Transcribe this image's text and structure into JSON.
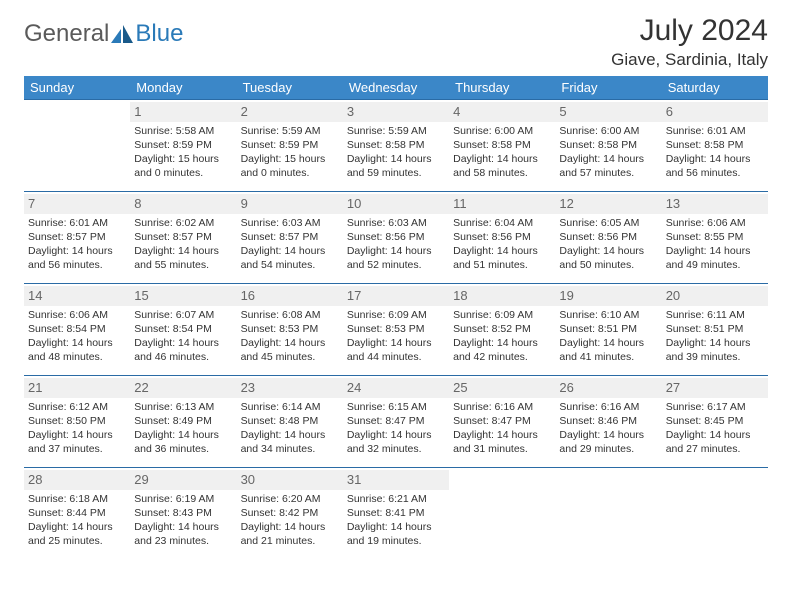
{
  "brand": {
    "part1": "General",
    "part2": "Blue"
  },
  "title": "July 2024",
  "location": "Giave, Sardinia, Italy",
  "colors": {
    "header_bg": "#3b87c8",
    "header_text": "#ffffff",
    "cell_border": "#2a6ba5",
    "daynum_bg": "#f0f0f0",
    "daynum_text": "#666666",
    "body_text": "#333333",
    "logo_gray": "#5a5a5a",
    "logo_blue": "#2a7ab8"
  },
  "weekdays": [
    "Sunday",
    "Monday",
    "Tuesday",
    "Wednesday",
    "Thursday",
    "Friday",
    "Saturday"
  ],
  "weeks": [
    [
      null,
      {
        "n": "1",
        "sr": "Sunrise: 5:58 AM",
        "ss": "Sunset: 8:59 PM",
        "d1": "Daylight: 15 hours",
        "d2": "and 0 minutes."
      },
      {
        "n": "2",
        "sr": "Sunrise: 5:59 AM",
        "ss": "Sunset: 8:59 PM",
        "d1": "Daylight: 15 hours",
        "d2": "and 0 minutes."
      },
      {
        "n": "3",
        "sr": "Sunrise: 5:59 AM",
        "ss": "Sunset: 8:58 PM",
        "d1": "Daylight: 14 hours",
        "d2": "and 59 minutes."
      },
      {
        "n": "4",
        "sr": "Sunrise: 6:00 AM",
        "ss": "Sunset: 8:58 PM",
        "d1": "Daylight: 14 hours",
        "d2": "and 58 minutes."
      },
      {
        "n": "5",
        "sr": "Sunrise: 6:00 AM",
        "ss": "Sunset: 8:58 PM",
        "d1": "Daylight: 14 hours",
        "d2": "and 57 minutes."
      },
      {
        "n": "6",
        "sr": "Sunrise: 6:01 AM",
        "ss": "Sunset: 8:58 PM",
        "d1": "Daylight: 14 hours",
        "d2": "and 56 minutes."
      }
    ],
    [
      {
        "n": "7",
        "sr": "Sunrise: 6:01 AM",
        "ss": "Sunset: 8:57 PM",
        "d1": "Daylight: 14 hours",
        "d2": "and 56 minutes."
      },
      {
        "n": "8",
        "sr": "Sunrise: 6:02 AM",
        "ss": "Sunset: 8:57 PM",
        "d1": "Daylight: 14 hours",
        "d2": "and 55 minutes."
      },
      {
        "n": "9",
        "sr": "Sunrise: 6:03 AM",
        "ss": "Sunset: 8:57 PM",
        "d1": "Daylight: 14 hours",
        "d2": "and 54 minutes."
      },
      {
        "n": "10",
        "sr": "Sunrise: 6:03 AM",
        "ss": "Sunset: 8:56 PM",
        "d1": "Daylight: 14 hours",
        "d2": "and 52 minutes."
      },
      {
        "n": "11",
        "sr": "Sunrise: 6:04 AM",
        "ss": "Sunset: 8:56 PM",
        "d1": "Daylight: 14 hours",
        "d2": "and 51 minutes."
      },
      {
        "n": "12",
        "sr": "Sunrise: 6:05 AM",
        "ss": "Sunset: 8:56 PM",
        "d1": "Daylight: 14 hours",
        "d2": "and 50 minutes."
      },
      {
        "n": "13",
        "sr": "Sunrise: 6:06 AM",
        "ss": "Sunset: 8:55 PM",
        "d1": "Daylight: 14 hours",
        "d2": "and 49 minutes."
      }
    ],
    [
      {
        "n": "14",
        "sr": "Sunrise: 6:06 AM",
        "ss": "Sunset: 8:54 PM",
        "d1": "Daylight: 14 hours",
        "d2": "and 48 minutes."
      },
      {
        "n": "15",
        "sr": "Sunrise: 6:07 AM",
        "ss": "Sunset: 8:54 PM",
        "d1": "Daylight: 14 hours",
        "d2": "and 46 minutes."
      },
      {
        "n": "16",
        "sr": "Sunrise: 6:08 AM",
        "ss": "Sunset: 8:53 PM",
        "d1": "Daylight: 14 hours",
        "d2": "and 45 minutes."
      },
      {
        "n": "17",
        "sr": "Sunrise: 6:09 AM",
        "ss": "Sunset: 8:53 PM",
        "d1": "Daylight: 14 hours",
        "d2": "and 44 minutes."
      },
      {
        "n": "18",
        "sr": "Sunrise: 6:09 AM",
        "ss": "Sunset: 8:52 PM",
        "d1": "Daylight: 14 hours",
        "d2": "and 42 minutes."
      },
      {
        "n": "19",
        "sr": "Sunrise: 6:10 AM",
        "ss": "Sunset: 8:51 PM",
        "d1": "Daylight: 14 hours",
        "d2": "and 41 minutes."
      },
      {
        "n": "20",
        "sr": "Sunrise: 6:11 AM",
        "ss": "Sunset: 8:51 PM",
        "d1": "Daylight: 14 hours",
        "d2": "and 39 minutes."
      }
    ],
    [
      {
        "n": "21",
        "sr": "Sunrise: 6:12 AM",
        "ss": "Sunset: 8:50 PM",
        "d1": "Daylight: 14 hours",
        "d2": "and 37 minutes."
      },
      {
        "n": "22",
        "sr": "Sunrise: 6:13 AM",
        "ss": "Sunset: 8:49 PM",
        "d1": "Daylight: 14 hours",
        "d2": "and 36 minutes."
      },
      {
        "n": "23",
        "sr": "Sunrise: 6:14 AM",
        "ss": "Sunset: 8:48 PM",
        "d1": "Daylight: 14 hours",
        "d2": "and 34 minutes."
      },
      {
        "n": "24",
        "sr": "Sunrise: 6:15 AM",
        "ss": "Sunset: 8:47 PM",
        "d1": "Daylight: 14 hours",
        "d2": "and 32 minutes."
      },
      {
        "n": "25",
        "sr": "Sunrise: 6:16 AM",
        "ss": "Sunset: 8:47 PM",
        "d1": "Daylight: 14 hours",
        "d2": "and 31 minutes."
      },
      {
        "n": "26",
        "sr": "Sunrise: 6:16 AM",
        "ss": "Sunset: 8:46 PM",
        "d1": "Daylight: 14 hours",
        "d2": "and 29 minutes."
      },
      {
        "n": "27",
        "sr": "Sunrise: 6:17 AM",
        "ss": "Sunset: 8:45 PM",
        "d1": "Daylight: 14 hours",
        "d2": "and 27 minutes."
      }
    ],
    [
      {
        "n": "28",
        "sr": "Sunrise: 6:18 AM",
        "ss": "Sunset: 8:44 PM",
        "d1": "Daylight: 14 hours",
        "d2": "and 25 minutes."
      },
      {
        "n": "29",
        "sr": "Sunrise: 6:19 AM",
        "ss": "Sunset: 8:43 PM",
        "d1": "Daylight: 14 hours",
        "d2": "and 23 minutes."
      },
      {
        "n": "30",
        "sr": "Sunrise: 6:20 AM",
        "ss": "Sunset: 8:42 PM",
        "d1": "Daylight: 14 hours",
        "d2": "and 21 minutes."
      },
      {
        "n": "31",
        "sr": "Sunrise: 6:21 AM",
        "ss": "Sunset: 8:41 PM",
        "d1": "Daylight: 14 hours",
        "d2": "and 19 minutes."
      },
      null,
      null,
      null
    ]
  ]
}
